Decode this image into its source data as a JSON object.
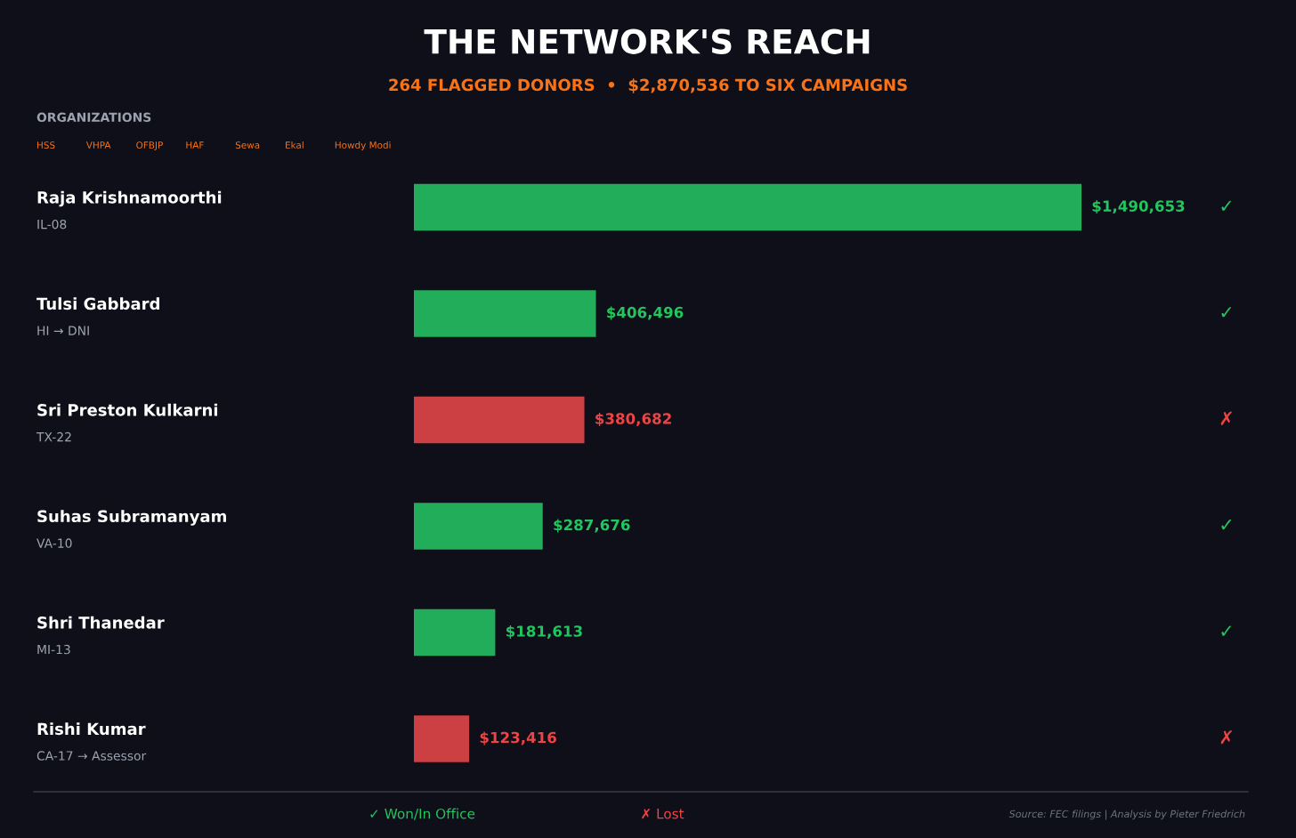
{
  "chart_data": {
    "type": "bar",
    "orientation": "horizontal",
    "title": "THE NETWORK'S REACH",
    "subtitle": "264 FLAGGED DONORS  •  $2,870,536 TO SIX CAMPAIGNS",
    "categories": [
      "Raja Krishnamoorthi",
      "Tulsi Gabbard",
      "Sri Preston Kulkarni",
      "Suhas Subramanyam",
      "Shri Thanedar",
      "Rishi Kumar"
    ],
    "values": [
      1490653,
      406496,
      380682,
      287676,
      181613,
      123416
    ],
    "colors": [
      "#22ad5a",
      "#22ad5a",
      "#cc3f42",
      "#22ad5a",
      "#22ad5a",
      "#cc3f42"
    ],
    "value_labels": [
      "$1,490,653",
      "$406,496",
      "$380,682",
      "$287,676",
      "$181,613",
      "$123,416"
    ],
    "annotations": [
      "ORGANIZATIONS",
      "HSS",
      "VHPA",
      "OFBJP",
      "HAF",
      "Sewa",
      "Ekal",
      "Howdy Modi",
      "Source: FEC filings | Analysis by Pieter Friedrich",
      "IL-08",
      "HI → DNI",
      "TX-22",
      "VA-10",
      "MI-13",
      "CA-17 → Assessor",
      "✓",
      "✓",
      "✗",
      "✓",
      "✓",
      "✗",
      "✓ Won/In Office",
      "✗ Lost"
    ]
  }
}
